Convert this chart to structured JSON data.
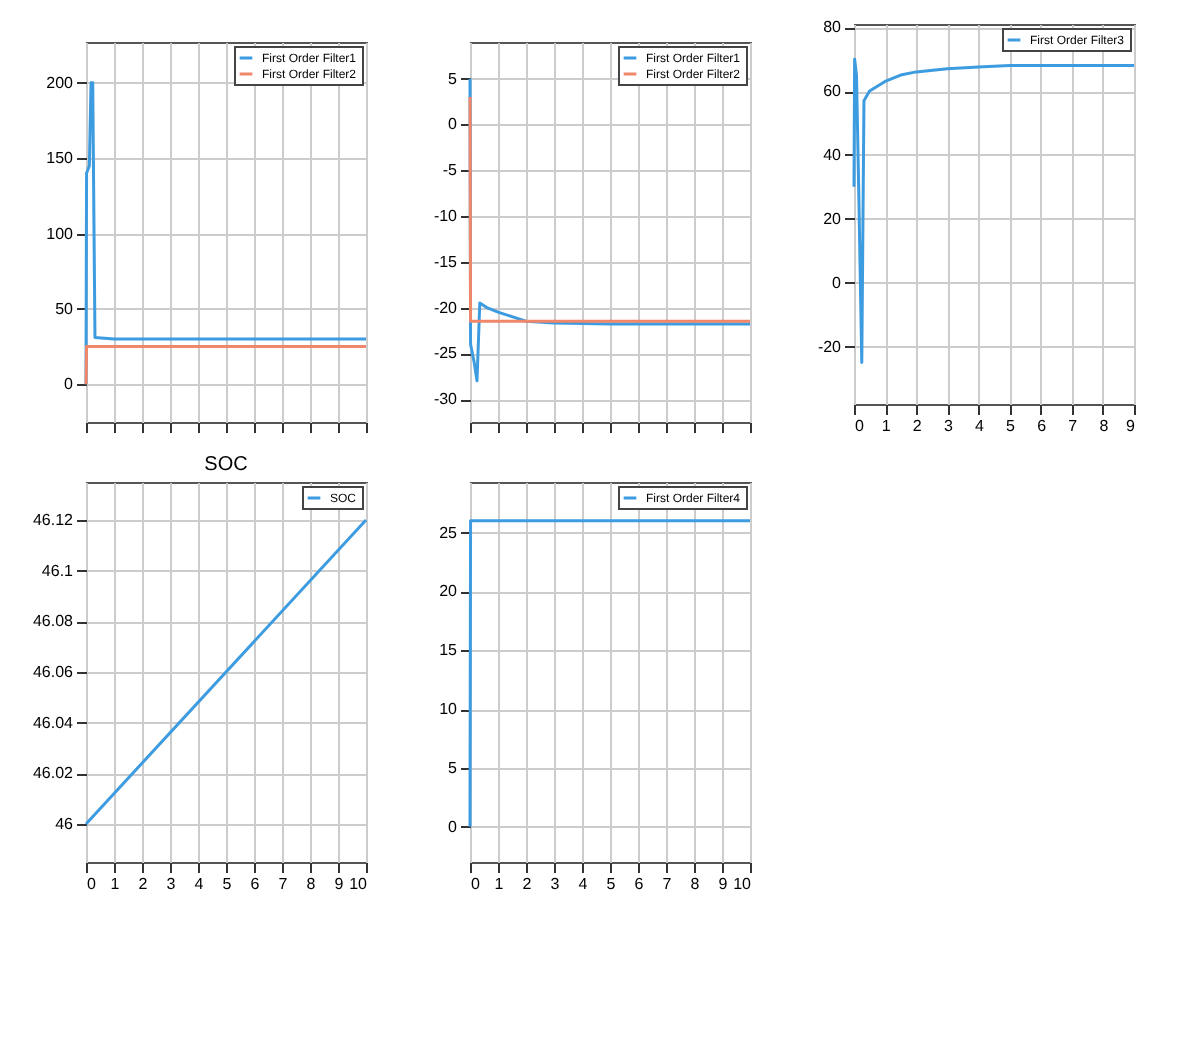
{
  "chart_data": [
    {
      "type": "line",
      "xlim": [
        0,
        10
      ],
      "xticks": [
        0,
        1,
        2,
        3,
        4,
        5,
        6,
        7,
        8,
        9,
        10
      ],
      "ylim": [
        -25,
        227
      ],
      "yticks": [
        0,
        50,
        100,
        150,
        200
      ],
      "grid": true,
      "legend": "top right",
      "tick_labels": "y",
      "series": [
        {
          "name": "First Order Filter1",
          "color": "#3d9be0",
          "x": [
            0,
            0.02,
            0.12,
            0.18,
            0.24,
            0.32,
            1,
            10
          ],
          "values": [
            0,
            140,
            145,
            200,
            200,
            31,
            30,
            30
          ]
        },
        {
          "name": "First Order Filter2",
          "color": "#f0866a",
          "x": [
            0,
            0.02,
            10
          ],
          "values": [
            0,
            25,
            25
          ]
        }
      ]
    },
    {
      "type": "line",
      "xlim": [
        0,
        10
      ],
      "xticks": [
        0,
        1,
        2,
        3,
        4,
        5,
        6,
        7,
        8,
        9,
        10
      ],
      "ylim": [
        -32.5,
        9
      ],
      "yticks": [
        -30,
        -25,
        -20,
        -15,
        -10,
        -5,
        0,
        5
      ],
      "grid": true,
      "legend": "top right",
      "tick_labels": "y",
      "series": [
        {
          "name": "First Order Filter1",
          "color": "#3d9be0",
          "x": [
            0,
            0.02,
            0.15,
            0.25,
            0.35,
            0.6,
            1,
            1.5,
            2,
            3,
            5,
            10
          ],
          "values": [
            5,
            -24,
            -26,
            -28,
            -19.5,
            -20,
            -20.5,
            -21,
            -21.5,
            -21.7,
            -21.8,
            -21.8
          ]
        },
        {
          "name": "First Order Filter2",
          "color": "#f0866a",
          "x": [
            0,
            0.02,
            3,
            6,
            10
          ],
          "values": [
            3,
            -21.5,
            -21.5,
            -21.5,
            -21.5
          ]
        }
      ]
    },
    {
      "type": "line",
      "xlim": [
        0,
        9
      ],
      "xticks": [
        0,
        1,
        2,
        3,
        4,
        5,
        6,
        7,
        8,
        9
      ],
      "ylim": [
        -38,
        81
      ],
      "yticks": [
        -20,
        0,
        20,
        40,
        60,
        80
      ],
      "grid": true,
      "legend": "top right",
      "series": [
        {
          "name": "First Order Filter3",
          "color": "#3d9be0",
          "x": [
            0,
            0.02,
            0.08,
            0.15,
            0.25,
            0.32,
            0.5,
            1,
            1.5,
            2,
            3,
            4,
            5,
            7,
            9
          ],
          "values": [
            30,
            70,
            65,
            30,
            -25,
            57,
            60,
            63,
            65,
            66,
            67,
            67.5,
            68,
            68,
            68
          ]
        }
      ]
    },
    {
      "type": "line",
      "title": "SOC",
      "xlim": [
        0,
        10
      ],
      "xticks": [
        0,
        1,
        2,
        3,
        4,
        5,
        6,
        7,
        8,
        9,
        10
      ],
      "ylim": [
        45.985,
        46.135
      ],
      "yticks": [
        46,
        46.02,
        46.04,
        46.06,
        46.08,
        46.1,
        46.12
      ],
      "grid": true,
      "legend": "top right",
      "series": [
        {
          "name": "SOC",
          "color": "#3d9be0",
          "x": [
            0,
            10
          ],
          "values": [
            46,
            46.12
          ]
        }
      ]
    },
    {
      "type": "line",
      "xlim": [
        0,
        10
      ],
      "xticks": [
        0,
        1,
        2,
        3,
        4,
        5,
        6,
        7,
        8,
        9,
        10
      ],
      "ylim": [
        -3,
        29.3
      ],
      "yticks": [
        0,
        5,
        10,
        15,
        20,
        25
      ],
      "grid": true,
      "legend": "top right",
      "series": [
        {
          "name": "First Order Filter4",
          "color": "#3d9be0",
          "x": [
            0,
            0.02,
            3,
            6,
            10
          ],
          "values": [
            0,
            26,
            26,
            26,
            26
          ]
        }
      ]
    }
  ]
}
